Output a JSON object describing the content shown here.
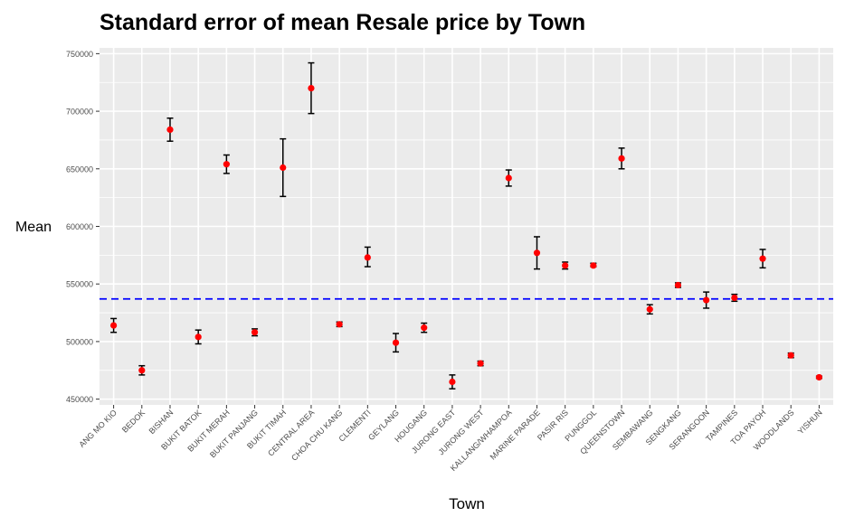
{
  "chart_data": {
    "type": "scatter",
    "title": "Standard error of mean Resale price by Town",
    "xlabel": "Town",
    "ylabel": "Mean",
    "ylim": [
      445000,
      755000
    ],
    "yticks": [
      450000,
      500000,
      550000,
      600000,
      650000,
      700000,
      750000
    ],
    "ytick_labels": [
      "450000",
      "500000",
      "550000",
      "600000",
      "650000",
      "700000",
      "750000"
    ],
    "reference_line": {
      "y": 537000,
      "style": "dashed",
      "color": "#0000ff"
    },
    "grid": true,
    "legend": "none",
    "colors": {
      "panel": "#ebebeb",
      "grid": "#ffffff",
      "point": "#ff0000",
      "errorbar": "#000000",
      "reference": "#0000ff",
      "title": "#000000",
      "tick_text": "#4d4d4d",
      "axis_label": "#000000"
    },
    "categories": [
      "ANG MO KIO",
      "BEDOK",
      "BISHAN",
      "BUKIT BATOK",
      "BUKIT MERAH",
      "BUKIT PANJANG",
      "BUKIT TIMAH",
      "CENTRAL AREA",
      "CHOA CHU KANG",
      "CLEMENTI",
      "GEYLANG",
      "HOUGANG",
      "JURONG EAST",
      "JURONG WEST",
      "KALLANG/WHAMPOA",
      "MARINE PARADE",
      "PASIR RIS",
      "PUNGGOL",
      "QUEENSTOWN",
      "SEMBAWANG",
      "SENGKANG",
      "SERANGOON",
      "TAMPINES",
      "TOA PAYOH",
      "WOODLANDS",
      "YISHUN"
    ],
    "values": [
      514000,
      475000,
      684000,
      504000,
      654000,
      508000,
      651000,
      720000,
      515000,
      573000,
      499000,
      512000,
      465000,
      481000,
      642000,
      577000,
      566000,
      566000,
      659000,
      528000,
      549000,
      536000,
      538000,
      572000,
      488000,
      469000
    ],
    "lower": [
      508000,
      471000,
      674000,
      498000,
      646000,
      505000,
      626000,
      698000,
      513000,
      565000,
      491000,
      508000,
      459000,
      479000,
      635000,
      563000,
      563000,
      565000,
      650000,
      524000,
      547000,
      529000,
      535000,
      564000,
      486000,
      468000
    ],
    "upper": [
      520000,
      479000,
      694000,
      510000,
      662000,
      511000,
      676000,
      742000,
      517000,
      582000,
      507000,
      516000,
      471000,
      483000,
      649000,
      591000,
      569000,
      568000,
      668000,
      532000,
      551000,
      543000,
      541000,
      580000,
      490000,
      470000
    ]
  }
}
